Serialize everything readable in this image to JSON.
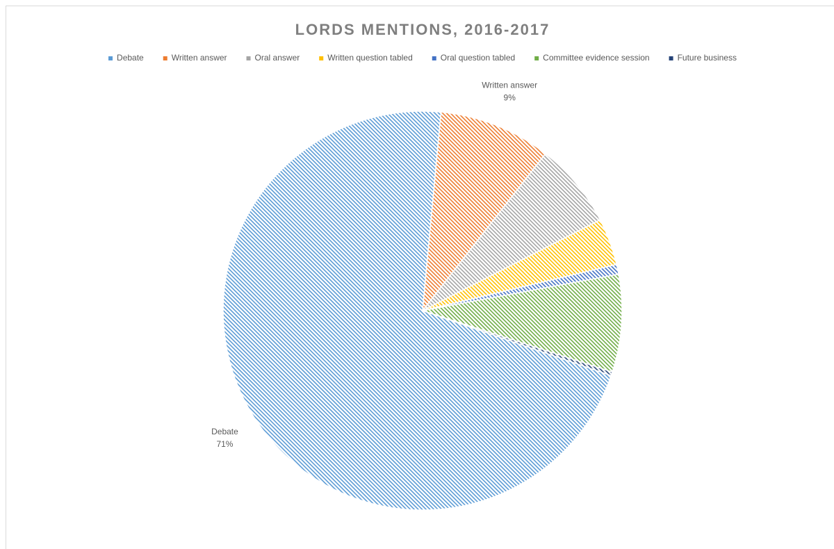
{
  "chart_data": {
    "type": "pie",
    "title": "LORDS MENTIONS, 2016-2017",
    "categories": [
      "Debate",
      "Written answer",
      "Oral answer",
      "Written question tabled",
      "Oral question tabled",
      "Committee evidence session",
      "Future business"
    ],
    "values": [
      71.2,
      9.1,
      6.9,
      3.8,
      0.8,
      7.9,
      0.3
    ],
    "value_labels": [
      "71%",
      "9%",
      null,
      null,
      null,
      null,
      null
    ],
    "colors": [
      "#5b9bd5",
      "#ed7d31",
      "#a5a5a5",
      "#ffc000",
      "#4472c4",
      "#70ad47",
      "#264478"
    ],
    "start_angle": 109,
    "legend": "top"
  }
}
